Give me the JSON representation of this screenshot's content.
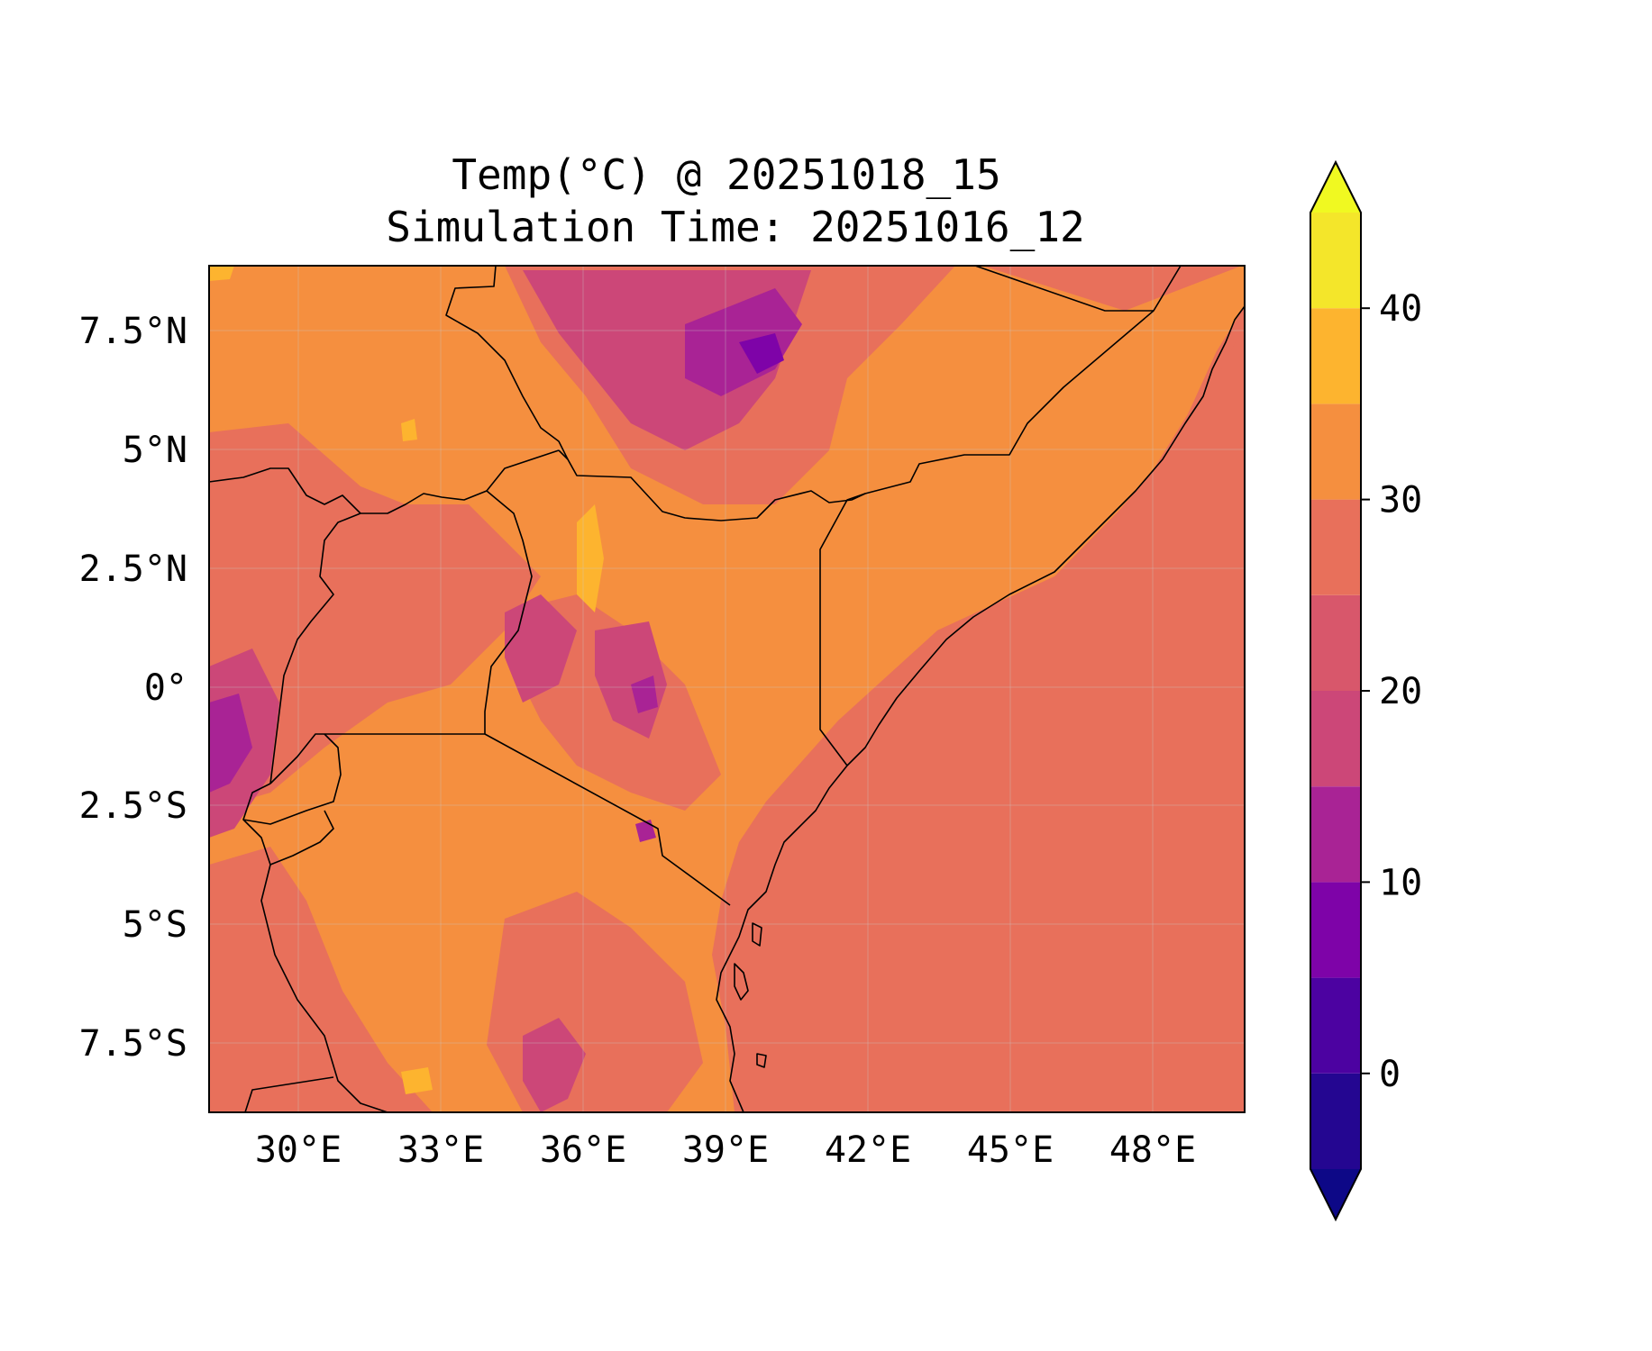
{
  "title": {
    "line1": "Temp(°C) @ 20251018_15",
    "line2": "Simulation Time: 20251016_12"
  },
  "map": {
    "lon_range": [
      27.8,
      49.6
    ],
    "lat_range": [
      -9.0,
      8.8
    ],
    "x_ticks": [
      "30°E",
      "33°E",
      "36°E",
      "39°E",
      "42°E",
      "45°E",
      "48°E"
    ],
    "y_ticks": [
      "7.5°N",
      "5°N",
      "2.5°N",
      "0°",
      "2.5°S",
      "5°S",
      "7.5°S"
    ],
    "field": "Temp(°C)"
  },
  "colorbar": {
    "ticks": [
      "0",
      "10",
      "20",
      "30",
      "40"
    ],
    "levels": [
      -5,
      0,
      5,
      10,
      15,
      20,
      25,
      30,
      35,
      40,
      45
    ],
    "colors": {
      "below": "#0d0887",
      "lv0": "#240691",
      "lv1": "#4c02a1",
      "lv2": "#7e03a8",
      "lv3": "#a92395",
      "lv4": "#cc4778",
      "lv5": "#d8576b",
      "lv6": "#e8705b",
      "lv7": "#f58f3f",
      "lv8": "#fdb42f",
      "lv9": "#f4e62a",
      "above": "#f0f921"
    }
  }
}
